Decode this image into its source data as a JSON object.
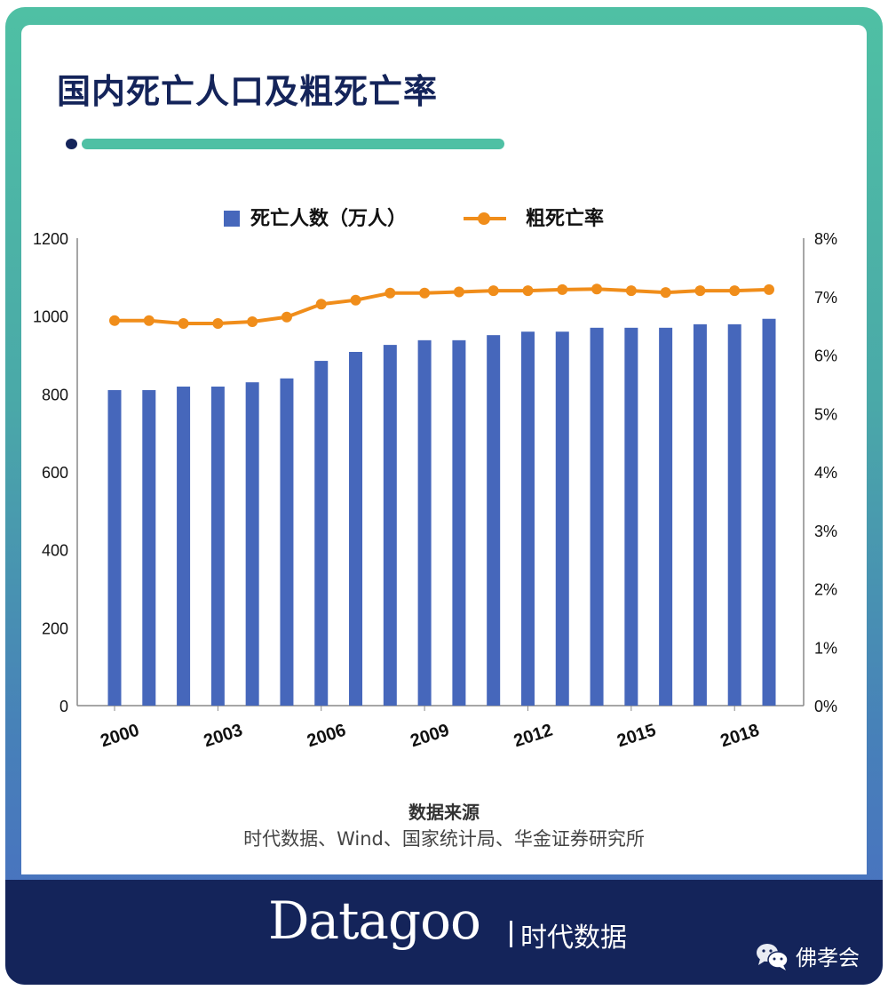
{
  "title": "国内死亡人口及粗死亡率",
  "legend": {
    "bar_label": "死亡人数（万人）",
    "line_label": "粗死亡率"
  },
  "colors": {
    "bar": "#4667bb",
    "line": "#f08d1a",
    "title": "#14245a",
    "accent": "#4fc0a4",
    "footer_bg": "#14245a"
  },
  "source": {
    "title": "数据来源",
    "body": "时代数据、Wind、国家统计局、华金证券研究所"
  },
  "footer": {
    "logo": "Datagoo",
    "logo_cn": "时代数据",
    "watermark": "佛孝会"
  },
  "chart_data": {
    "type": "bar",
    "title": "国内死亡人口及粗死亡率",
    "categories": [
      "2000",
      "2001",
      "2002",
      "2003",
      "2004",
      "2005",
      "2006",
      "2007",
      "2008",
      "2009",
      "2010",
      "2011",
      "2012",
      "2013",
      "2014",
      "2015",
      "2016",
      "2017",
      "2018",
      "2019"
    ],
    "x_tick_labels": [
      "2000",
      "2003",
      "2006",
      "2009",
      "2012",
      "2015",
      "2018"
    ],
    "series": [
      {
        "name": "死亡人数（万人）",
        "type": "bar",
        "axis": "left",
        "values": [
          810,
          810,
          819,
          819,
          830,
          840,
          885,
          908,
          926,
          938,
          938,
          951,
          960,
          960,
          970,
          970,
          970,
          979,
          979,
          993
        ]
      },
      {
        "name": "粗死亡率",
        "type": "line",
        "axis": "right",
        "unit": "%",
        "values": [
          6.59,
          6.59,
          6.54,
          6.54,
          6.57,
          6.65,
          6.87,
          6.94,
          7.06,
          7.06,
          7.08,
          7.1,
          7.1,
          7.12,
          7.13,
          7.1,
          7.07,
          7.1,
          7.1,
          7.12
        ]
      }
    ],
    "y_left": {
      "ticks": [
        "0",
        "200",
        "400",
        "600",
        "800",
        "1000",
        "1200"
      ],
      "ylim": [
        0,
        1200
      ]
    },
    "y_right": {
      "ticks": [
        "0%",
        "1%",
        "2%",
        "3%",
        "4%",
        "5%",
        "6%",
        "7%",
        "8%"
      ],
      "ylim": [
        0,
        8
      ]
    },
    "xlabel": "",
    "ylabel": "",
    "grid": false,
    "legend_position": "top"
  }
}
